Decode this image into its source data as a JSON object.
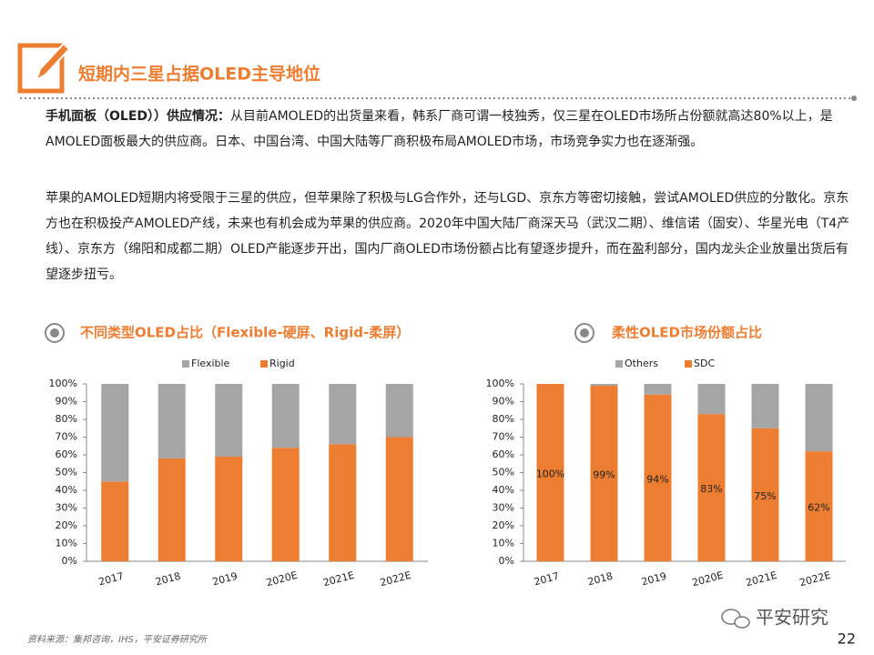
{
  "header": {
    "title": "短期内三星占据OLED主导地位"
  },
  "paragraphs": [
    {
      "bold": "手机面板（OLED））供应情况：",
      "text": "从目前AMOLED的出货量来看，韩系厂商可谓一枝独秀，仅三星在OLED市场所占份额就高达80%以上，是AMOLED面板最大的供应商。日本、中国台湾、中国大陆等厂商积极布局AMOLED市场，市场竞争实力也在逐渐强。"
    },
    {
      "text": "苹果的AMOLED短期内将受限于三星的供应，但苹果除了积极与LG合作外，还与LGD、京东方等密切接触，尝试AMOLED供应的分散化。京东方也在积极投产AMOLED产线，未来也有机会成为苹果的供应商。2020年中国大陆厂商深天马（武汉二期）、维信诺（固安）、华星光电（T4产线）、京东方（绵阳和成都二期）OLED产能逐步开出，国内厂商OLED市场份额占比有望逐步提升，而在盈利部分，国内龙头企业放量出货后有望逐步扭亏。"
    }
  ],
  "chart_data": [
    {
      "type": "stacked_bar",
      "title": "不同类型OLED占比（Flexible-硬屏、Rigid-柔屏）",
      "categories": [
        "2017",
        "2018",
        "2019",
        "2020E",
        "2021E",
        "2022E"
      ],
      "series": [
        {
          "name": "Flexible",
          "color": "#a5a5a5",
          "values": [
            55,
            42,
            41,
            36,
            34,
            30
          ]
        },
        {
          "name": "Rigid",
          "color": "#ed7d31",
          "values": [
            45,
            58,
            59,
            64,
            66,
            70
          ]
        }
      ],
      "ylim": [
        0,
        100
      ],
      "yticks": [
        {
          "value": 0,
          "label": "0%"
        },
        {
          "value": 10,
          "label": "10%"
        },
        {
          "value": 20,
          "label": "20%"
        },
        {
          "value": 30,
          "label": "30%"
        },
        {
          "value": 40,
          "label": "40%"
        },
        {
          "value": 50,
          "label": "50%"
        },
        {
          "value": 60,
          "label": "60%"
        },
        {
          "value": 70,
          "label": "70%"
        },
        {
          "value": 80,
          "label": "80%"
        },
        {
          "value": 90,
          "label": "90%"
        },
        {
          "value": 100,
          "label": "100%"
        }
      ]
    },
    {
      "type": "stacked_bar",
      "title": "柔性OLED市场份额占比",
      "categories": [
        "2017",
        "2018",
        "2019",
        "2020E",
        "2021E",
        "2022E"
      ],
      "series": [
        {
          "name": "Others",
          "color": "#a5a5a5",
          "values": [
            0,
            1,
            6,
            17,
            25,
            38
          ]
        },
        {
          "name": "SDC",
          "color": "#ed7d31",
          "values": [
            100,
            99,
            94,
            83,
            75,
            62
          ],
          "value_labels": [
            "100%",
            "99%",
            "94%",
            "83%",
            "75%",
            "62%"
          ]
        }
      ],
      "ylim": [
        0,
        100
      ],
      "yticks": [
        {
          "value": 0,
          "label": "0%"
        },
        {
          "value": 10,
          "label": "10%"
        },
        {
          "value": 20,
          "label": "20%"
        },
        {
          "value": 30,
          "label": "30%"
        },
        {
          "value": 40,
          "label": "40%"
        },
        {
          "value": 50,
          "label": "50%"
        },
        {
          "value": 60,
          "label": "60%"
        },
        {
          "value": 70,
          "label": "70%"
        },
        {
          "value": 80,
          "label": "80%"
        },
        {
          "value": 90,
          "label": "90%"
        },
        {
          "value": 100,
          "label": "100%"
        }
      ]
    }
  ],
  "footer": {
    "source": "资料来源：集邦咨询，IHS，平安证券研究所",
    "brand": "平安研究",
    "page": "22"
  }
}
